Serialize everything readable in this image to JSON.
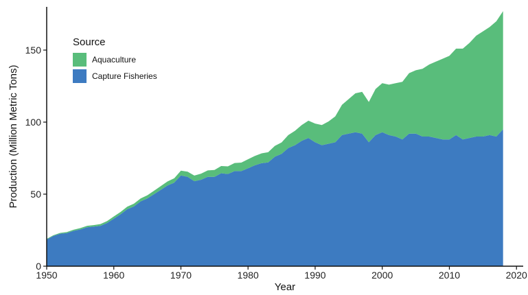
{
  "chart_data": {
    "type": "area",
    "stacked": true,
    "xlabel": "Year",
    "ylabel": "Production (Million Metric Tons)",
    "xlim": [
      1950,
      2021
    ],
    "ylim": [
      0,
      180
    ],
    "xticks": [
      1950,
      1960,
      1970,
      1980,
      1990,
      2000,
      2010,
      2020
    ],
    "yticks": [
      0,
      50,
      100,
      150
    ],
    "grid": false,
    "legend": {
      "title": "Source",
      "position": "top-left"
    },
    "x": [
      1950,
      1951,
      1952,
      1953,
      1954,
      1955,
      1956,
      1957,
      1958,
      1959,
      1960,
      1961,
      1962,
      1963,
      1964,
      1965,
      1966,
      1967,
      1968,
      1969,
      1970,
      1971,
      1972,
      1973,
      1974,
      1975,
      1976,
      1977,
      1978,
      1979,
      1980,
      1981,
      1982,
      1983,
      1984,
      1985,
      1986,
      1987,
      1988,
      1989,
      1990,
      1991,
      1992,
      1993,
      1994,
      1995,
      1996,
      1997,
      1998,
      1999,
      2000,
      2001,
      2002,
      2003,
      2004,
      2005,
      2006,
      2007,
      2008,
      2009,
      2010,
      2011,
      2012,
      2013,
      2014,
      2015,
      2016,
      2017,
      2018
    ],
    "series": [
      {
        "name": "Capture Fisheries",
        "color": "#3d7bc1",
        "values": [
          18.5,
          21,
          22.5,
          23,
          24.5,
          25.5,
          27,
          27.5,
          28,
          30,
          33,
          36,
          39.5,
          41.5,
          45,
          47,
          50,
          53,
          56,
          58,
          63,
          62,
          59,
          60,
          62,
          62,
          64.5,
          64,
          66,
          66,
          68,
          70,
          71.5,
          72,
          76,
          78,
          82,
          84,
          87,
          89,
          86,
          84,
          85,
          86,
          91,
          92,
          93,
          92,
          86,
          91,
          93,
          91,
          90,
          88,
          92,
          92,
          90,
          90,
          89,
          88,
          88,
          91,
          88,
          89,
          90,
          90,
          91,
          90,
          95
        ]
      },
      {
        "name": "Aquaculture",
        "color": "#59bd7b",
        "values": [
          0.5,
          0.5,
          0.6,
          0.7,
          0.8,
          0.9,
          1,
          1,
          1.2,
          1.3,
          1.5,
          1.6,
          1.8,
          1.9,
          2,
          2.2,
          2.4,
          2.6,
          2.8,
          3,
          3.3,
          3.6,
          3.9,
          4.2,
          4.5,
          4.8,
          5,
          5.3,
          5.6,
          5.9,
          6.2,
          6.5,
          6.8,
          7.1,
          7.5,
          7.9,
          9,
          10,
          11,
          12,
          13,
          14,
          15.5,
          18,
          21,
          24,
          27,
          29,
          28,
          32,
          34,
          35,
          37,
          40,
          42,
          44,
          47,
          50,
          53,
          56,
          58,
          60,
          63,
          66,
          70,
          73,
          75,
          80,
          82
        ]
      }
    ]
  }
}
